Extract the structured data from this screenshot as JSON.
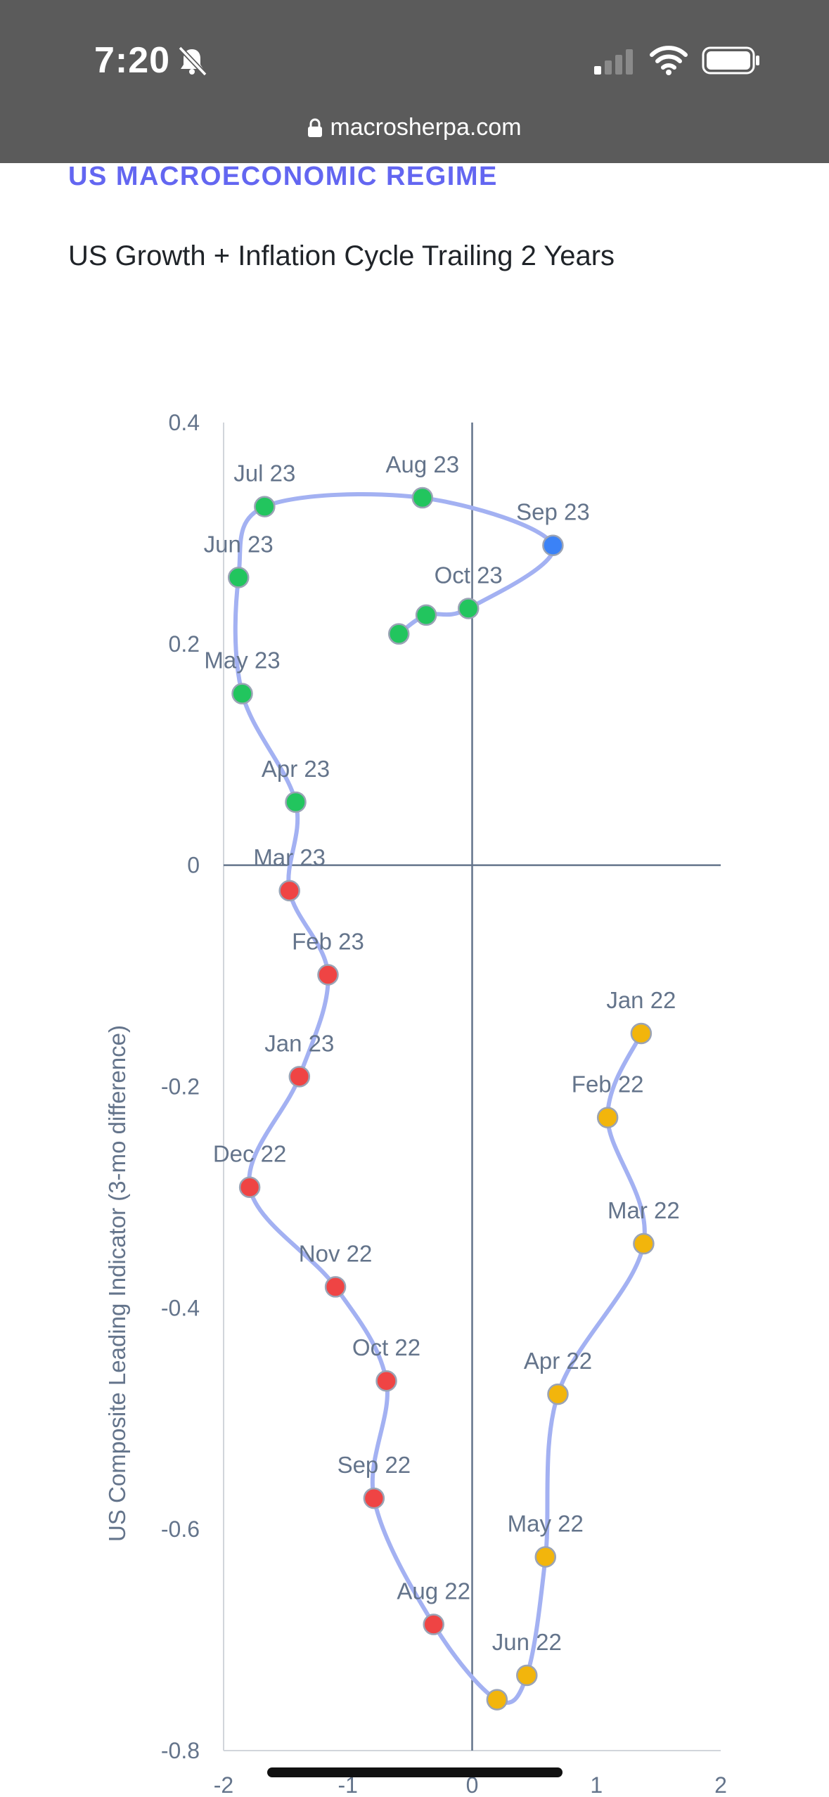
{
  "status_bar": {
    "time": "7:20",
    "url": "macrosherpa.com",
    "icons": [
      "bell-slash-icon",
      "cell-signal-icon",
      "wifi-icon",
      "battery-icon",
      "lock-icon"
    ]
  },
  "page": {
    "section_heading": "US MACROECONOMIC REGIME",
    "chart_title": "US Growth + Inflation Cycle Trailing 2 Years"
  },
  "chart_data": {
    "type": "scatter",
    "title": "US Growth + Inflation Cycle Trailing 2 Years",
    "xlabel": "",
    "ylabel": "US Composite Leading Indicator (3-mo difference)",
    "xlim": [
      -2,
      2
    ],
    "ylim": [
      -0.8,
      0.4
    ],
    "x_ticks": [
      "-2",
      "-1",
      "0",
      "1",
      "2"
    ],
    "y_ticks": [
      "0.4",
      "0.2",
      "0",
      "-0.2",
      "-0.4",
      "-0.6",
      "-0.8"
    ],
    "connected": true,
    "colors": {
      "line": "#a3b1f2",
      "yellow": "#f2b50c",
      "red": "#ef4444",
      "green": "#22c55e",
      "blue": "#3b82f6",
      "axis": "#64748b",
      "label": "#64748b"
    },
    "points": [
      {
        "label": "Jan 22",
        "x": 1.36,
        "y": -0.152,
        "color": "yellow"
      },
      {
        "label": "Feb 22",
        "x": 1.09,
        "y": -0.228,
        "color": "yellow"
      },
      {
        "label": "Mar 22",
        "x": 1.38,
        "y": -0.342,
        "color": "yellow"
      },
      {
        "label": "Apr 22",
        "x": 0.69,
        "y": -0.478,
        "color": "yellow"
      },
      {
        "label": "May 22",
        "x": 0.59,
        "y": -0.625,
        "color": "yellow"
      },
      {
        "label": "Jun 22",
        "x": 0.44,
        "y": -0.732,
        "color": "yellow"
      },
      {
        "label": "",
        "x": 0.2,
        "y": -0.754,
        "color": "yellow"
      },
      {
        "label": "Aug 22",
        "x": -0.31,
        "y": -0.686,
        "color": "red"
      },
      {
        "label": "Sep 22",
        "x": -0.79,
        "y": -0.572,
        "color": "red"
      },
      {
        "label": "Oct 22",
        "x": -0.69,
        "y": -0.466,
        "color": "red"
      },
      {
        "label": "Nov 22",
        "x": -1.1,
        "y": -0.381,
        "color": "red"
      },
      {
        "label": "Dec 22",
        "x": -1.79,
        "y": -0.291,
        "color": "red"
      },
      {
        "label": "Jan 23",
        "x": -1.39,
        "y": -0.191,
        "color": "red"
      },
      {
        "label": "Feb 23",
        "x": -1.16,
        "y": -0.099,
        "color": "red"
      },
      {
        "label": "Mar 23",
        "x": -1.47,
        "y": -0.023,
        "color": "red"
      },
      {
        "label": "Apr 23",
        "x": -1.42,
        "y": 0.057,
        "color": "green"
      },
      {
        "label": "May 23",
        "x": -1.85,
        "y": 0.155,
        "color": "green"
      },
      {
        "label": "Jun 23",
        "x": -1.88,
        "y": 0.26,
        "color": "green"
      },
      {
        "label": "Jul 23",
        "x": -1.67,
        "y": 0.324,
        "color": "green"
      },
      {
        "label": "Aug 23",
        "x": -0.4,
        "y": 0.332,
        "color": "green"
      },
      {
        "label": "Sep 23",
        "x": 0.65,
        "y": 0.289,
        "color": "blue"
      },
      {
        "label": "Oct 23",
        "x": -0.03,
        "y": 0.232,
        "color": "green"
      },
      {
        "label": "",
        "x": -0.37,
        "y": 0.226,
        "color": "green"
      },
      {
        "label": "",
        "x": -0.59,
        "y": 0.209,
        "color": "green"
      }
    ]
  }
}
